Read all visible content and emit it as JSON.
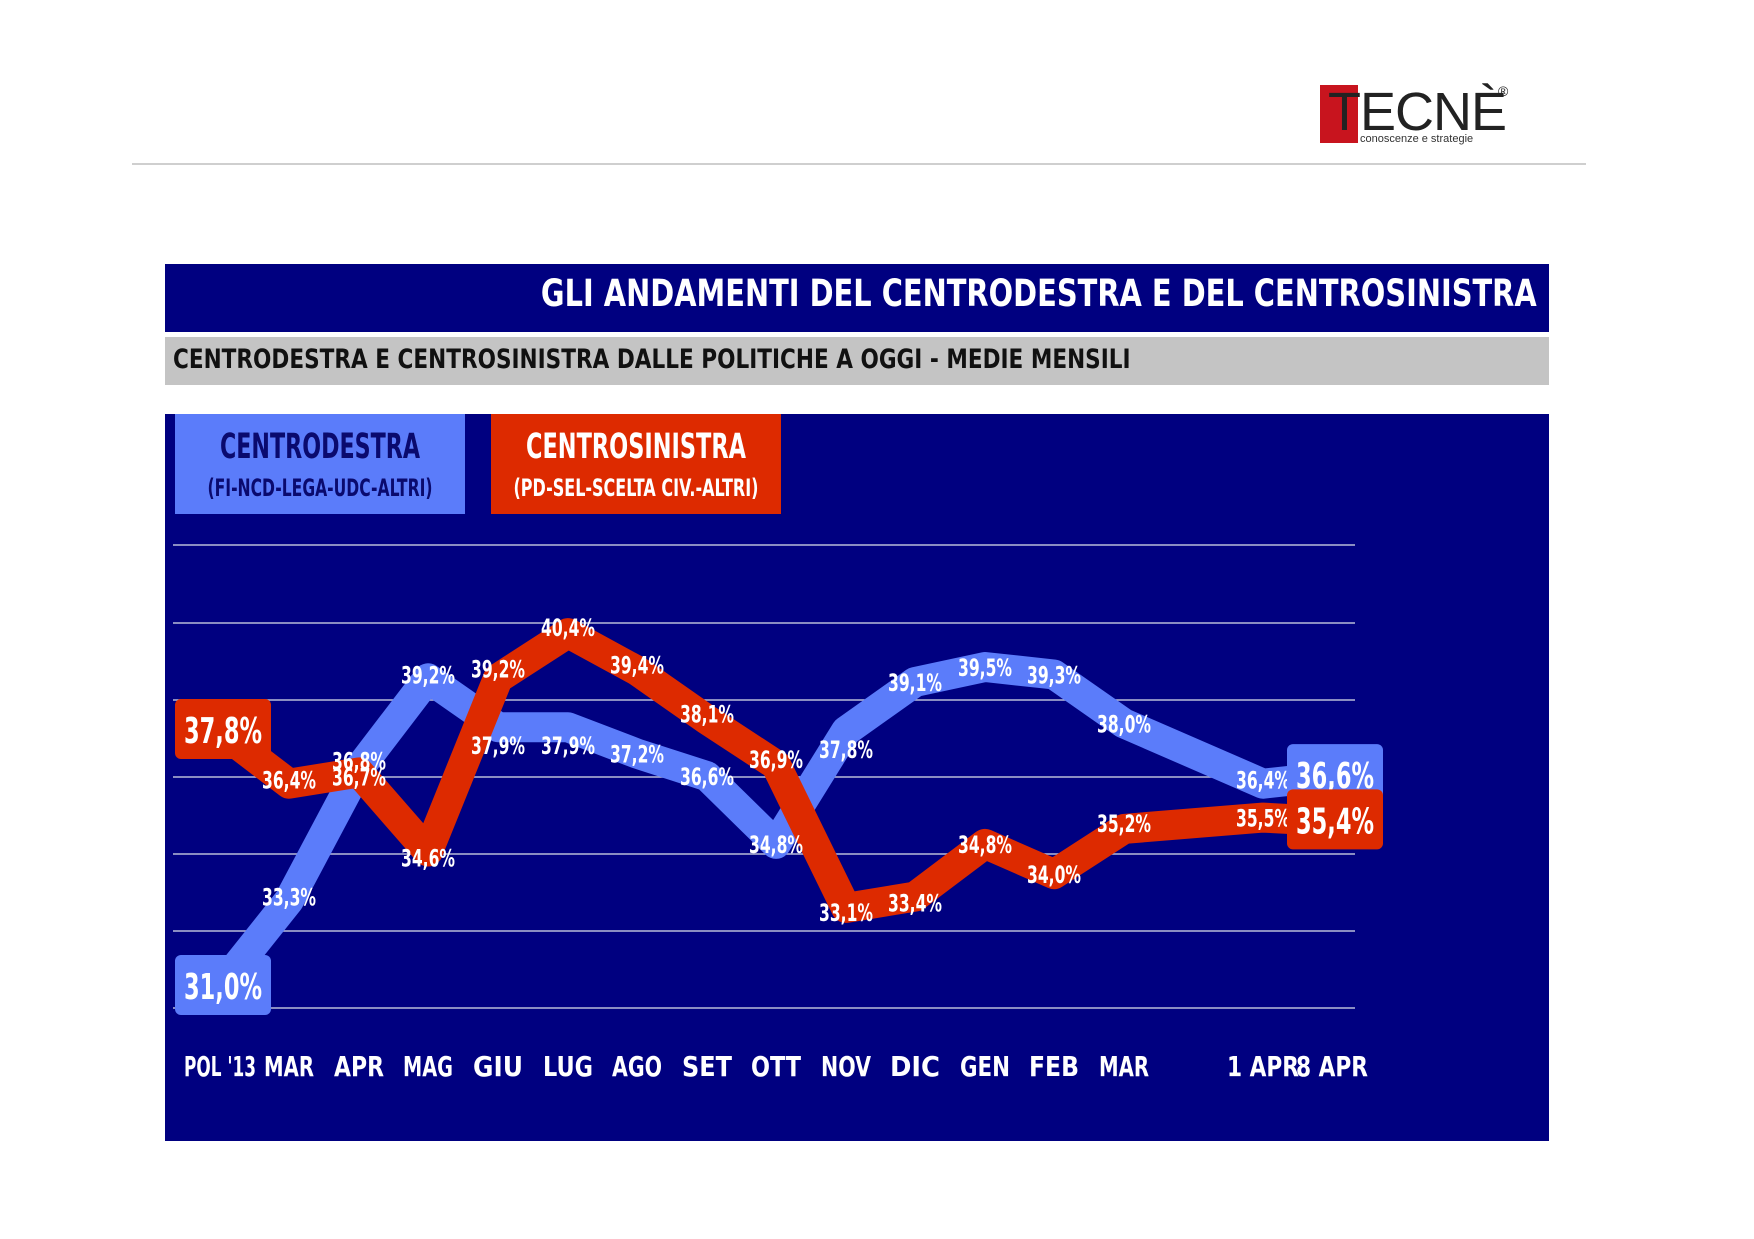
{
  "logo": {
    "brand": "TECNÈ",
    "registered": "®",
    "tagline": "conoscenze e strategie"
  },
  "header": {
    "title": "GLI ANDAMENTI DEL CENTRODESTRA E DEL CENTROSINISTRA",
    "subtitle": "CENTRODESTRA E CENTROSINISTRA DALLE POLITICHE A OGGI - MEDIE MENSILI"
  },
  "legend": [
    {
      "name": "CENTRODESTRA",
      "detail": "(FI-NCD-LEGA-UDC-ALTRI)",
      "color": "#5b7cfa"
    },
    {
      "name": "CENTROSINISTRA",
      "detail": "(PD-SEL-SCELTA CIV.-ALTRI)",
      "color": "#dd2a00"
    }
  ],
  "colors": {
    "background": "#000080",
    "centrodestra": "#5b7cfa",
    "centrosinistra": "#dd2a00",
    "grid": "#b8bcd8",
    "label": "#ffffff"
  },
  "chart_data": {
    "type": "line",
    "title": "GLI ANDAMENTI DEL CENTRODESTRA E DEL CENTROSINISTRA",
    "subtitle": "CENTRODESTRA E CENTROSINISTRA DALLE POLITICHE A OGGI - MEDIE MENSILI",
    "categories": [
      "POL '13",
      "MAR",
      "APR",
      "MAG",
      "GIU",
      "LUG",
      "AGO",
      "SET",
      "OTT",
      "NOV",
      "DIC",
      "GEN",
      "FEB",
      "MAR",
      "1 APR",
      "8 APR"
    ],
    "series": [
      {
        "name": "CENTRODESTRA",
        "color": "#5b7cfa",
        "values": [
          31.0,
          33.3,
          36.8,
          39.2,
          37.9,
          37.9,
          37.2,
          36.6,
          34.8,
          37.8,
          39.1,
          39.5,
          39.3,
          38.0,
          36.4,
          36.6
        ],
        "labels": [
          "31,0%",
          "33,3%",
          "36,8%",
          "39,2%",
          "37,9%",
          "37,9%",
          "37,2%",
          "36,6%",
          "34,8%",
          "37,8%",
          "39,1%",
          "39,5%",
          "39,3%",
          "38,0%",
          "36,4%",
          "36,6%"
        ]
      },
      {
        "name": "CENTROSINISTRA",
        "color": "#dd2a00",
        "values": [
          37.8,
          36.4,
          36.7,
          34.6,
          39.2,
          40.4,
          39.4,
          38.1,
          36.9,
          33.1,
          33.4,
          34.8,
          34.0,
          35.2,
          35.5,
          35.4
        ],
        "labels": [
          "37,8%",
          "36,4%",
          "36,7%",
          "34,6%",
          "39,2%",
          "40,4%",
          "39,4%",
          "38,1%",
          "36,9%",
          "33,1%",
          "33,4%",
          "34,8%",
          "34,0%",
          "35,2%",
          "35,5%",
          "35,4%"
        ]
      }
    ],
    "grid": true,
    "legend_position": "top-left"
  }
}
